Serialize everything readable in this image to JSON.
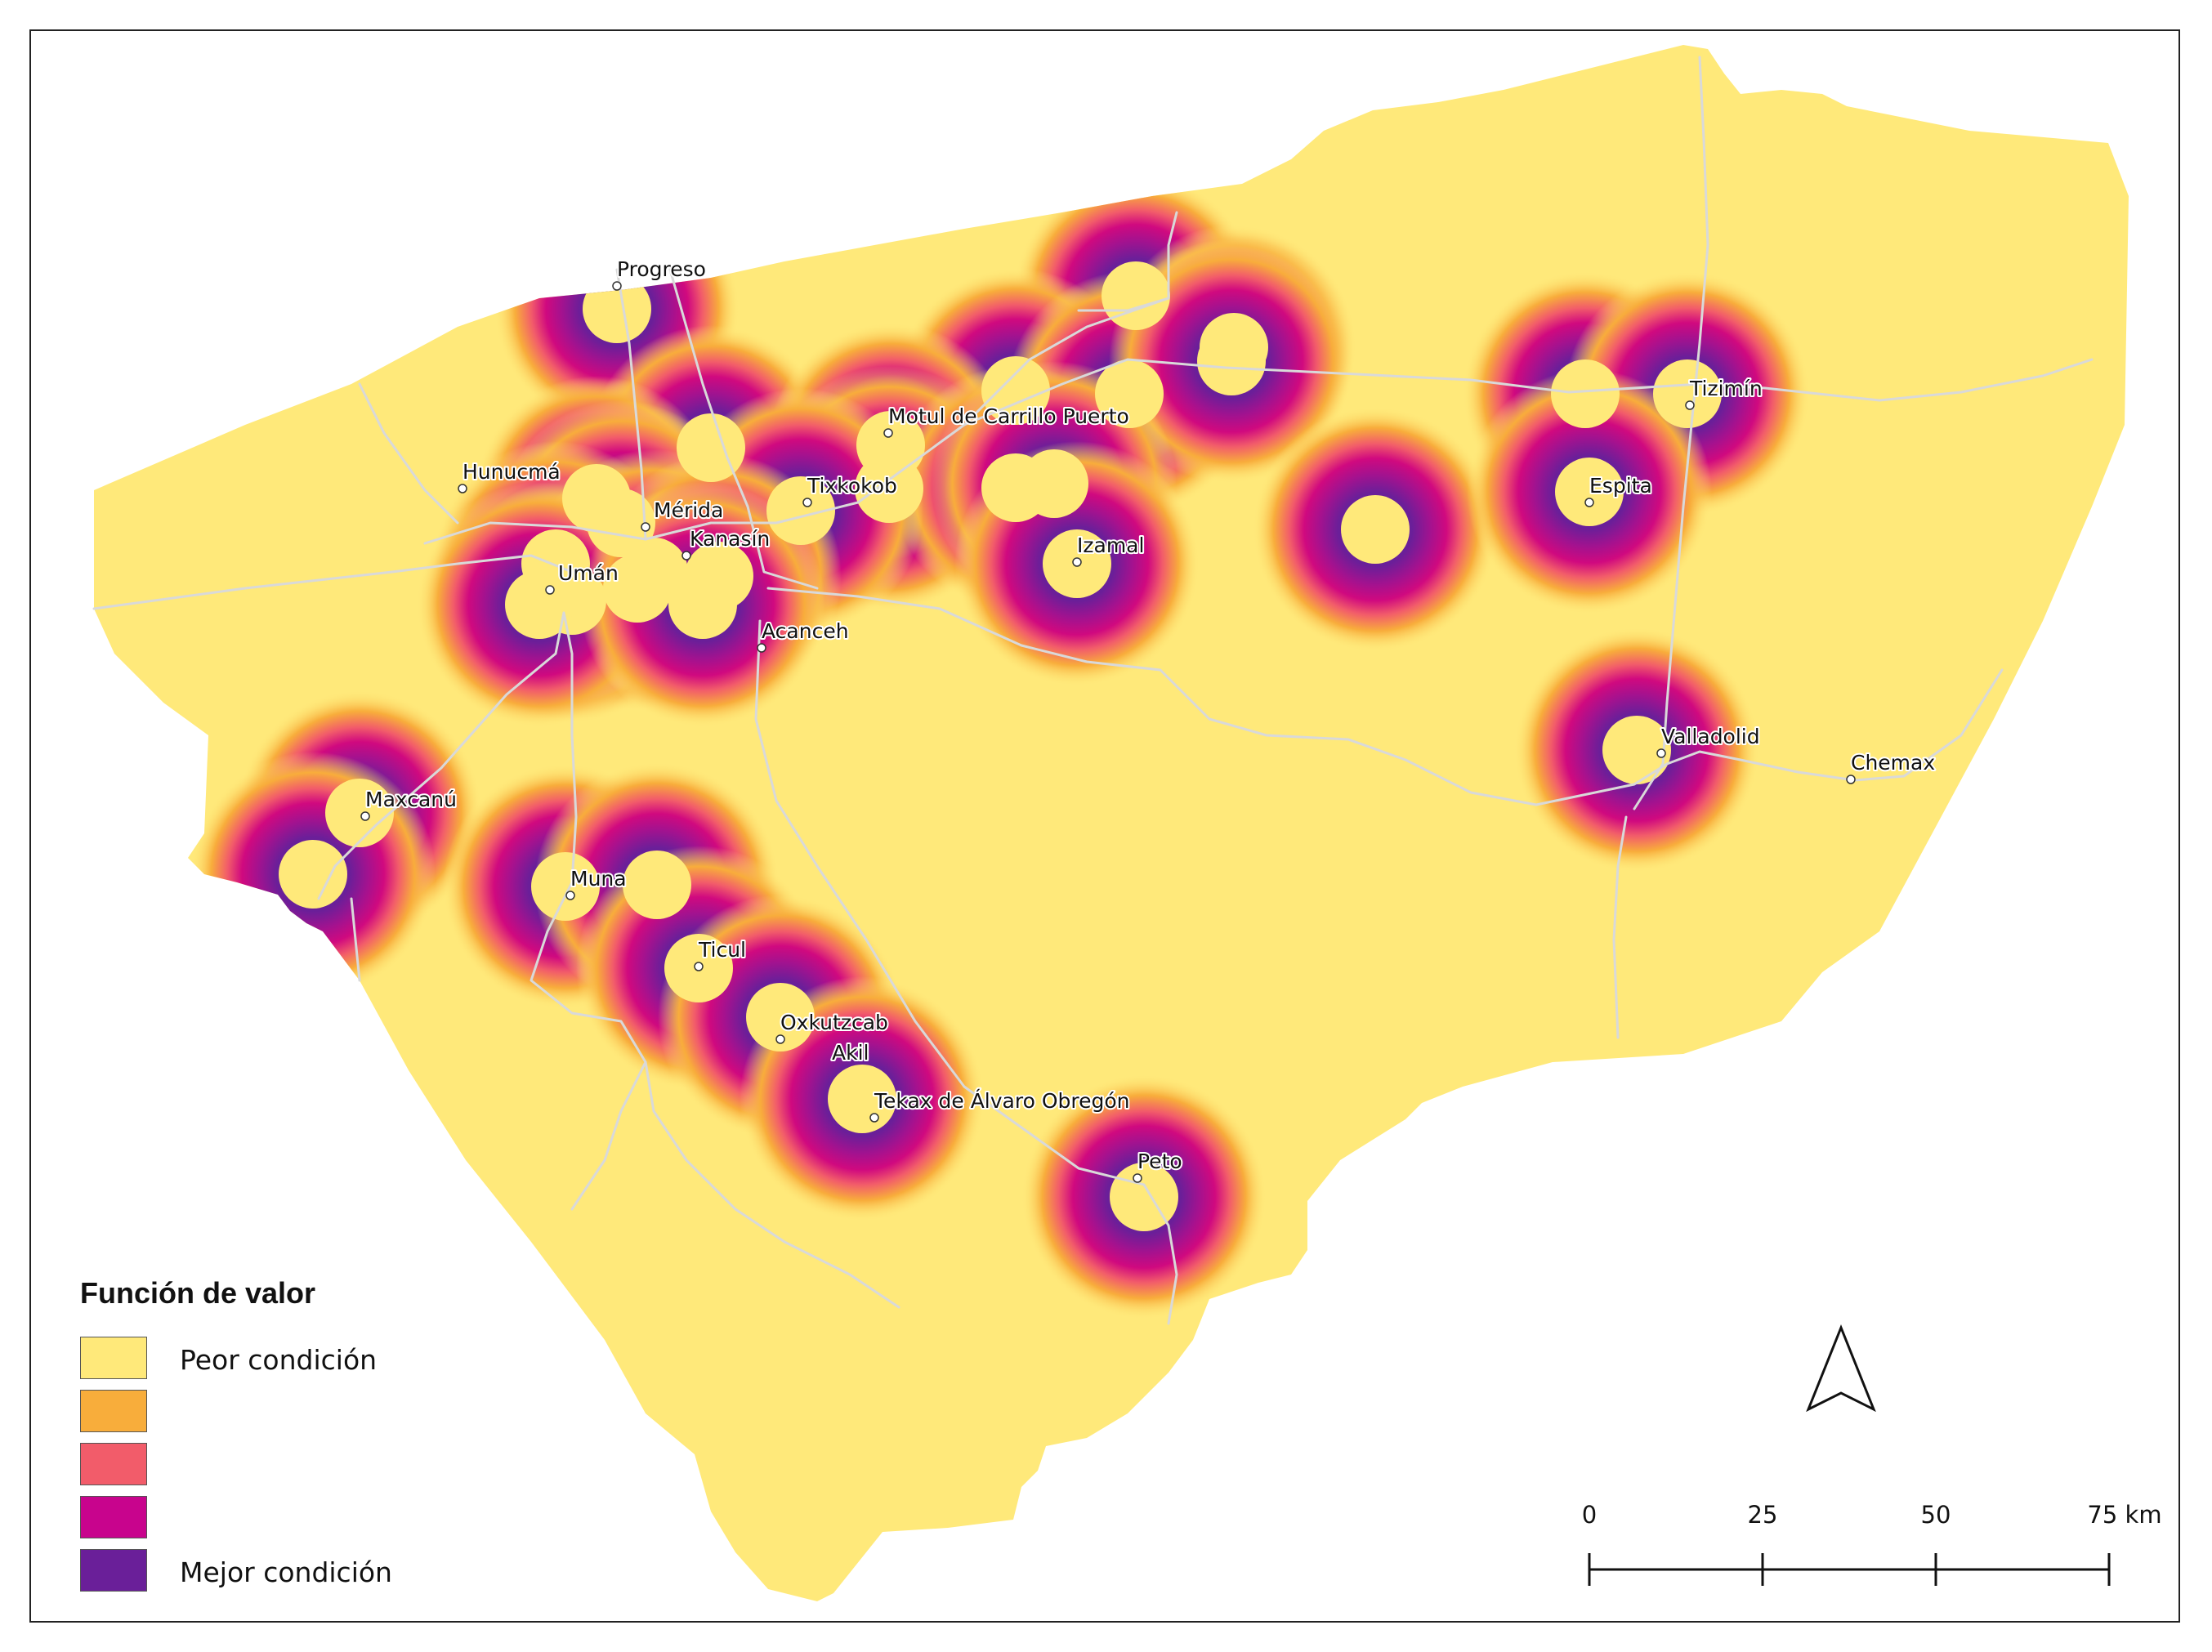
{
  "legend": {
    "title": "Función de valor",
    "items": [
      {
        "label": "Peor condición",
        "color": "#ffe97a"
      },
      {
        "label": "",
        "color": "#f8ad3b"
      },
      {
        "label": "",
        "color": "#f25c6a"
      },
      {
        "label": "",
        "color": "#c8048d"
      },
      {
        "label": "Mejor condición",
        "color": "#6a1f99"
      }
    ]
  },
  "scale_bar": {
    "ticks": [
      "0",
      "25",
      "50",
      "75 km"
    ]
  },
  "north_arrow": {
    "icon": "north-arrow-icon"
  },
  "colors": {
    "land": "#ffe97a",
    "ring_inner": "#6a1f99",
    "ring_mid1": "#a3128f",
    "ring_mid2": "#d0097f",
    "ring_mid3": "#f25c6a",
    "ring_outer": "#f8ad3b",
    "roads": "#d9d9d9"
  },
  "cities": [
    {
      "name": "Progreso"
    },
    {
      "name": "Hunucmá"
    },
    {
      "name": "Mérida"
    },
    {
      "name": "Umán"
    },
    {
      "name": "Kanasín"
    },
    {
      "name": "Acanceh"
    },
    {
      "name": "Tixkokob"
    },
    {
      "name": "Motul de Carrillo Puerto"
    },
    {
      "name": "Izamal"
    },
    {
      "name": "Tizimín"
    },
    {
      "name": "Espita"
    },
    {
      "name": "Valladolid"
    },
    {
      "name": "Chemax"
    },
    {
      "name": "Maxcanú"
    },
    {
      "name": "Muna"
    },
    {
      "name": "Ticul"
    },
    {
      "name": "Oxkutzcab"
    },
    {
      "name": "Akil"
    },
    {
      "name": "Tekax de Álvaro Obregón"
    },
    {
      "name": "Peto"
    }
  ]
}
